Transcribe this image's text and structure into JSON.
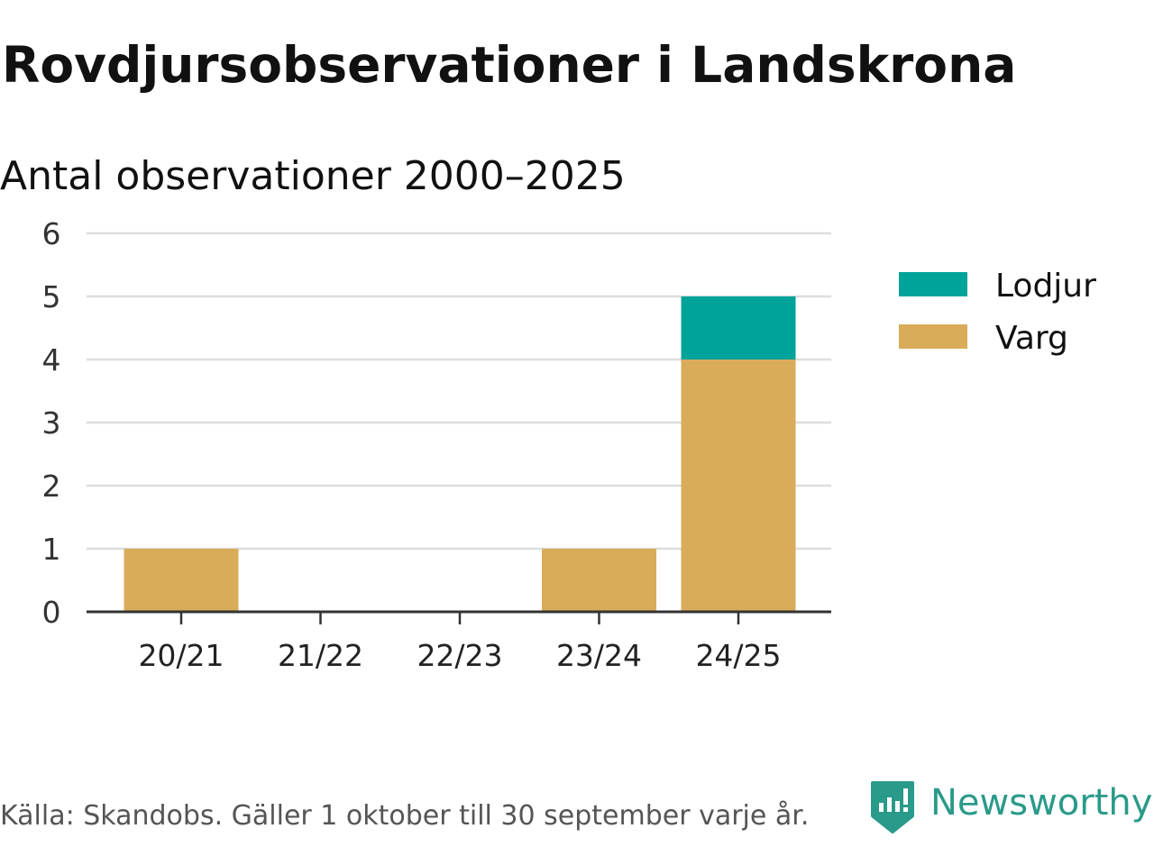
{
  "title": "Rovdjursobservationer i Landskrona",
  "subtitle": "Antal observationer 2000–2025",
  "footer": {
    "source": "Källa: Skandobs. Gäller 1 oktober till 30 september varje år."
  },
  "logo": {
    "text": "Newsworthy",
    "icon": "newsworthy-logo-icon"
  },
  "colors": {
    "varg": "#d9ac5a",
    "lodjur": "#00a39a",
    "grid": "#dddddd",
    "axis": "#333333",
    "brand": "#2a9a8a"
  },
  "chart_data": {
    "type": "bar",
    "stacked": true,
    "title": "Rovdjursobservationer i Landskrona",
    "subtitle": "Antal observationer 2000–2025",
    "xlabel": "",
    "ylabel": "",
    "categories": [
      "20/21",
      "21/22",
      "22/23",
      "23/24",
      "24/25"
    ],
    "series": [
      {
        "name": "Varg",
        "color": "#d9ac5a",
        "values": [
          1,
          0,
          0,
          1,
          4
        ]
      },
      {
        "name": "Lodjur",
        "color": "#00a39a",
        "values": [
          0,
          0,
          0,
          0,
          1
        ]
      }
    ],
    "legend": [
      "Lodjur",
      "Varg"
    ],
    "legend_position": "right",
    "ylim": [
      0,
      6
    ],
    "yticks": [
      0,
      1,
      2,
      3,
      4,
      5,
      6
    ],
    "grid": true
  }
}
